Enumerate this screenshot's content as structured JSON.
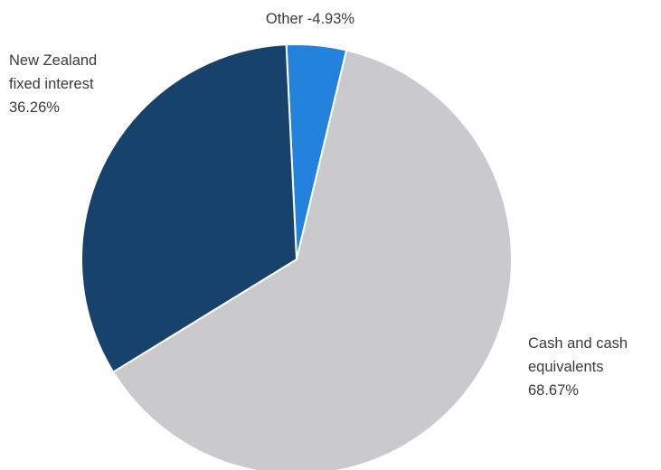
{
  "chart_data": {
    "type": "pie",
    "title": "",
    "slices": [
      {
        "name": "Other",
        "label_lines": [
          "Other -4.93%"
        ],
        "value": 4.93,
        "color": "#2383dc"
      },
      {
        "name": "Cash and cash equivalents",
        "label_lines": [
          "Cash and cash",
          "equivalents",
          "68.67%"
        ],
        "value": 68.67,
        "color": "#cacacc"
      },
      {
        "name": "New Zealand fixed interest",
        "label_lines": [
          "New Zealand",
          "fixed interest",
          "36.26%"
        ],
        "value": 36.26,
        "color": "#16426b"
      }
    ]
  }
}
